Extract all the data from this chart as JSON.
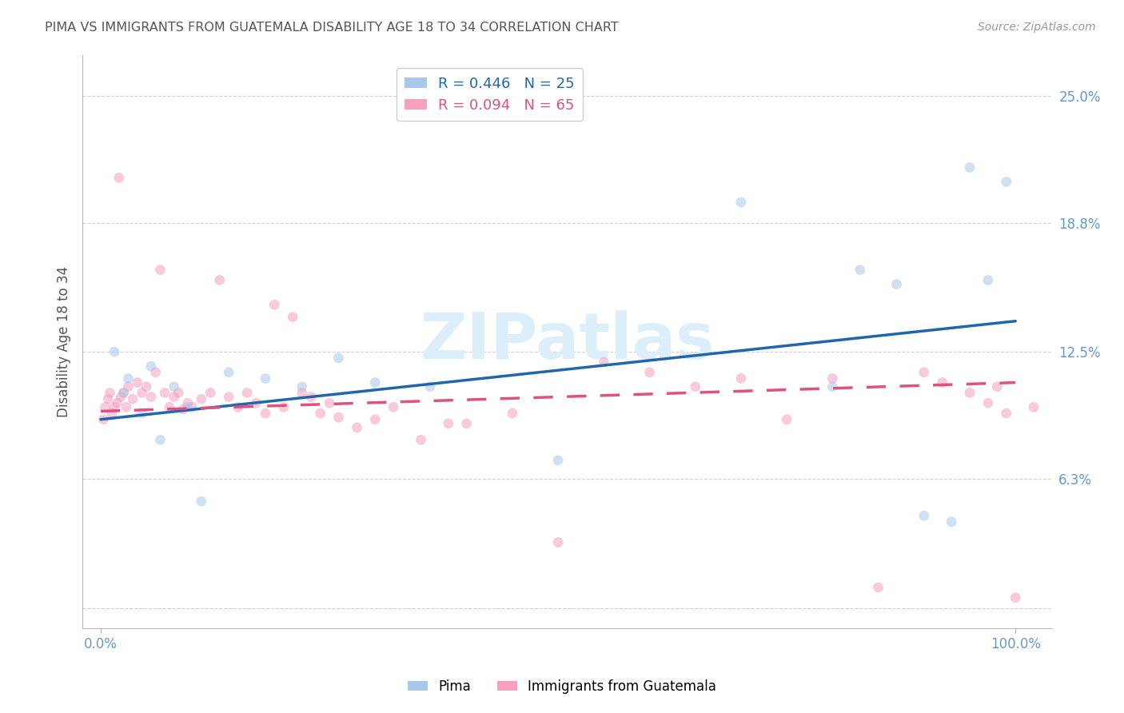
{
  "title": "PIMA VS IMMIGRANTS FROM GUATEMALA DISABILITY AGE 18 TO 34 CORRELATION CHART",
  "source_text": "Source: ZipAtlas.com",
  "ylabel": "Disability Age 18 to 34",
  "xlim": [
    -2,
    104
  ],
  "ylim": [
    -1,
    27
  ],
  "ytick_vals": [
    0,
    6.3,
    12.5,
    18.8,
    25.0
  ],
  "ytick_labels": [
    "",
    "6.3%",
    "12.5%",
    "18.8%",
    "25.0%"
  ],
  "xtick_vals": [
    0,
    100
  ],
  "xtick_labels": [
    "0.0%",
    "100.0%"
  ],
  "watermark": "ZIPatlas",
  "legend_pima_label": "R = 0.446   N = 25",
  "legend_guat_label": "R = 0.094   N = 65",
  "bottom_legend_pima": "Pima",
  "bottom_legend_guat": "Immigrants from Guatemala",
  "pima_color": "#a8c8e8",
  "guatemala_color": "#f4a0be",
  "pima_line_color": "#2166ac",
  "guatemala_line_color": "#e05080",
  "background_color": "#ffffff",
  "grid_color": "#cccccc",
  "title_color": "#555555",
  "tick_label_color": "#6699cc",
  "watermark_color": "#dceefa",
  "marker_size": 85,
  "marker_alpha": 0.55,
  "line_width": 2.5,
  "pima_x": [
    1.5,
    2.5,
    3.0,
    4.5,
    5.5,
    6.5,
    8.0,
    9.5,
    11.0,
    14.0,
    18.0,
    22.0,
    26.0,
    30.0,
    36.0,
    50.0,
    70.0,
    80.0,
    83.0,
    87.0,
    90.0,
    93.0,
    95.0,
    97.0,
    99.0
  ],
  "pima_y": [
    12.5,
    10.5,
    11.2,
    9.5,
    11.8,
    8.2,
    10.8,
    9.8,
    5.2,
    11.5,
    11.2,
    10.8,
    12.2,
    11.0,
    10.8,
    7.2,
    19.8,
    10.8,
    16.5,
    15.8,
    4.5,
    4.2,
    21.5,
    16.0,
    20.8
  ],
  "guatemala_x": [
    0.3,
    0.5,
    0.8,
    1.0,
    1.2,
    1.5,
    1.8,
    2.0,
    2.2,
    2.5,
    2.8,
    3.0,
    3.5,
    4.0,
    4.5,
    5.0,
    5.5,
    6.0,
    6.5,
    7.0,
    7.5,
    8.0,
    8.5,
    9.0,
    9.5,
    10.0,
    11.0,
    12.0,
    13.0,
    14.0,
    15.0,
    16.0,
    17.0,
    18.0,
    19.0,
    20.0,
    21.0,
    22.0,
    23.0,
    24.0,
    25.0,
    26.0,
    28.0,
    30.0,
    32.0,
    35.0,
    38.0,
    40.0,
    45.0,
    50.0,
    55.0,
    60.0,
    65.0,
    70.0,
    75.0,
    80.0,
    85.0,
    90.0,
    92.0,
    95.0,
    97.0,
    98.0,
    99.0,
    100.0,
    102.0
  ],
  "guatemala_y": [
    9.2,
    9.8,
    10.2,
    10.5,
    9.5,
    9.8,
    10.0,
    21.0,
    10.3,
    10.5,
    9.8,
    10.8,
    10.2,
    11.0,
    10.5,
    10.8,
    10.3,
    11.5,
    16.5,
    10.5,
    9.8,
    10.3,
    10.5,
    9.7,
    10.0,
    9.8,
    10.2,
    10.5,
    16.0,
    10.3,
    9.8,
    10.5,
    10.0,
    9.5,
    14.8,
    9.8,
    14.2,
    10.5,
    10.3,
    9.5,
    10.0,
    9.3,
    8.8,
    9.2,
    9.8,
    8.2,
    9.0,
    9.0,
    9.5,
    3.2,
    12.0,
    11.5,
    10.8,
    11.2,
    9.2,
    11.2,
    1.0,
    11.5,
    11.0,
    10.5,
    10.0,
    10.8,
    9.5,
    0.5,
    9.8
  ],
  "pima_trend_x": [
    0,
    100
  ],
  "pima_trend_y": [
    9.2,
    14.0
  ],
  "guat_trend_x": [
    0,
    100
  ],
  "guat_trend_y": [
    9.6,
    11.0
  ]
}
